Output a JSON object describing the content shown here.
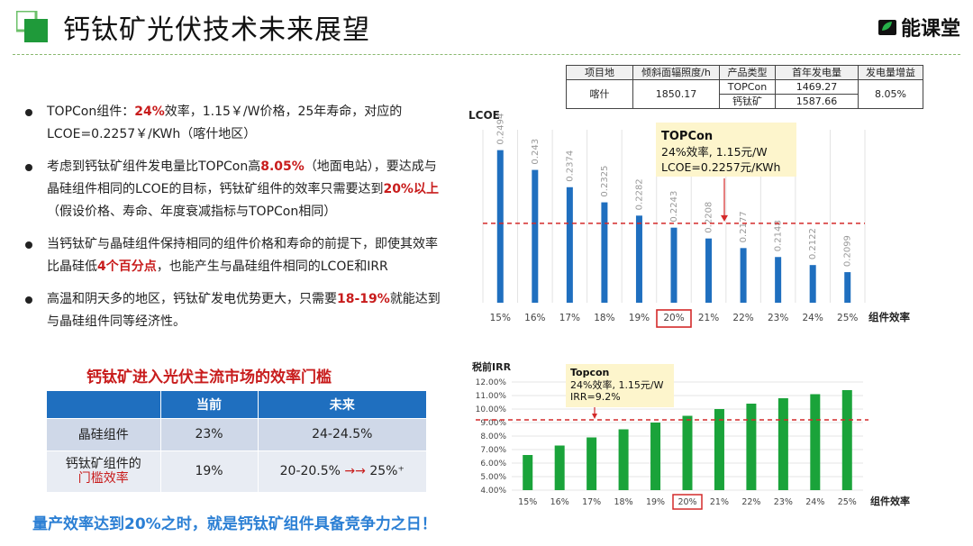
{
  "header": {
    "title": "钙钛矿光伏技术未来展望",
    "brand": "能课堂",
    "accent_color": "#1f9a3a",
    "brand_icon": "leaf-book-icon"
  },
  "bullets": [
    [
      {
        "t": "TOPCon组件："
      },
      {
        "t": "24%",
        "hl": true
      },
      {
        "t": "效率，1.15￥/W价格，25年寿命，对应的LCOE=0.2257￥/KWh（喀什地区）"
      }
    ],
    [
      {
        "t": "考虑到钙钛矿组件发电量比TOPCon高"
      },
      {
        "t": "8.05%",
        "hl": true
      },
      {
        "t": "（地面电站），要达成与晶硅组件相同的LCOE的目标，钙钛矿组件的效率只需要达到"
      },
      {
        "t": "20%以上",
        "hl": true
      },
      {
        "t": "（假设价格、寿命、年度衰减指标与TOPCon相同）"
      }
    ],
    [
      {
        "t": "当钙钛矿与晶硅组件保持相同的组件价格和寿命的前提下，即使其效率比晶硅低"
      },
      {
        "t": "4个百分点",
        "hl": true
      },
      {
        "t": "，也能产生与晶硅组件相同的LCOE和IRR"
      }
    ],
    [
      {
        "t": "高温和阴天多的地区，钙钛矿发电优势更大，只需要"
      },
      {
        "t": "18-19%",
        "hl": true
      },
      {
        "t": "就能达到与晶硅组件同等经济性。"
      }
    ]
  ],
  "info_table": {
    "headers": [
      "项目地",
      "倾斜面辐照度/h",
      "产品类型",
      "首年发电量",
      "发电量增益"
    ],
    "location": "喀什",
    "irradiance": "1850.17",
    "products": [
      {
        "type": "TOPCon",
        "gen": "1469.27"
      },
      {
        "type": "钙钛矿",
        "gen": "1587.66"
      }
    ],
    "gain": "8.05%"
  },
  "threshold": {
    "title": "钙钛矿进入光伏主流市场的效率门槛",
    "headers": [
      "",
      "当前",
      "未来"
    ],
    "row1": {
      "label": "晶硅组件",
      "current": "23%",
      "future": "24-24.5%"
    },
    "row2": {
      "label_a": "钙钛矿组件的",
      "label_b": "门槛效率",
      "current": "19%",
      "future_a": "20-20.5%",
      "arrow": "→→",
      "future_b": "25%⁺"
    }
  },
  "footer": "量产效率达到20%之时，就是钙钛矿组件具备竞争力之日！",
  "chart_data": [
    {
      "type": "bar",
      "ylabel": "LCOE",
      "xlabel": "组件效率",
      "categories": [
        "15%",
        "16%",
        "17%",
        "18%",
        "19%",
        "20%",
        "21%",
        "22%",
        "23%",
        "24%",
        "25%"
      ],
      "values": [
        0.2494,
        0.243,
        0.2374,
        0.2325,
        0.2282,
        0.2243,
        0.2208,
        0.2177,
        0.2148,
        0.2122,
        0.2099
      ],
      "ylim": [
        0.2,
        0.256
      ],
      "reference_line": 0.2257,
      "highlight_category": "20%",
      "bar_color": "#1f6fbf",
      "annotation": {
        "title": "TOPCon",
        "lines": [
          "24%效率, 1.15元/W",
          "LCOE=0.2257元/KWh"
        ]
      }
    },
    {
      "type": "bar",
      "ylabel": "税前IRR",
      "xlabel": "组件效率",
      "categories": [
        "15%",
        "16%",
        "17%",
        "18%",
        "19%",
        "20%",
        "21%",
        "22%",
        "23%",
        "24%",
        "25%"
      ],
      "values": [
        6.6,
        7.3,
        7.9,
        8.5,
        9.0,
        9.5,
        10.0,
        10.4,
        10.8,
        11.1,
        11.4
      ],
      "yticks": [
        "4.00%",
        "5.00%",
        "6.00%",
        "7.00%",
        "8.00%",
        "9.00%",
        "10.00%",
        "11.00%",
        "12.00%"
      ],
      "ylim": [
        4,
        12
      ],
      "reference_line": 9.2,
      "highlight_category": "20%",
      "bar_color": "#1aa33a",
      "annotation": {
        "title": "Topcon",
        "lines": [
          "24%效率, 1.15元/W",
          "IRR=9.2%"
        ]
      }
    }
  ]
}
